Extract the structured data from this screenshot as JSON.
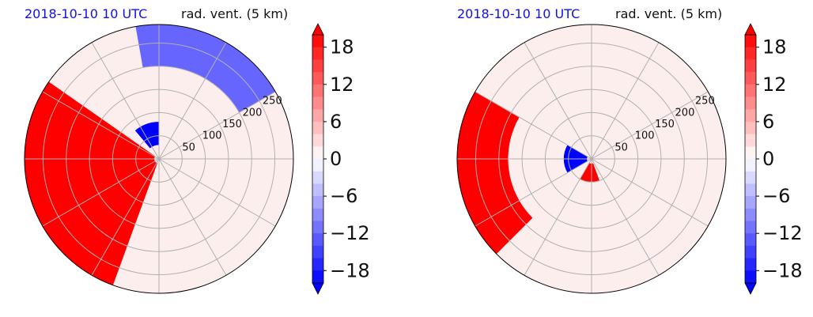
{
  "chart_data": [
    {
      "type": "heatmap",
      "projection": "polar",
      "title_left": "2018-10-10 10 UTC",
      "title_right": "rad. vent. (5 km)",
      "range_rings": [
        50,
        100,
        150,
        200,
        250
      ],
      "range_ring_labels": [
        "50",
        "100",
        "150",
        "200",
        "250"
      ],
      "radial_lines_deg": [
        0,
        30,
        60,
        90,
        120,
        150,
        180,
        210,
        240,
        270,
        300,
        330
      ],
      "max_range": 290,
      "colorbar": {
        "ticks": [
          "18",
          "12",
          "6",
          "0",
          "−6",
          "−12",
          "−18"
        ],
        "tick_values": [
          18,
          12,
          6,
          0,
          -6,
          -12,
          -18
        ],
        "vmin": -20,
        "vmax": 20,
        "negative_color": "#0000ff",
        "positive_color": "#ff0000",
        "zero_color": "#ffffff",
        "extend": "both"
      },
      "features": [
        {
          "sign": "positive",
          "az_start": 200,
          "az_end": 305,
          "r_min": 10,
          "r_max": 290,
          "intensity": 20
        },
        {
          "sign": "negative",
          "az_start": 320,
          "az_end": 360,
          "r_min": 30,
          "r_max": 80,
          "intensity": 20
        },
        {
          "sign": "negative",
          "az_start": 350,
          "az_end": 60,
          "r_min": 200,
          "r_max": 290,
          "intensity": 12
        }
      ]
    },
    {
      "type": "heatmap",
      "projection": "polar",
      "title_left": "2018-10-10 10 UTC",
      "title_right": "rad. vent. (5 km)",
      "range_rings": [
        50,
        100,
        150,
        200,
        250
      ],
      "range_ring_labels": [
        "50",
        "100",
        "150",
        "200",
        "250"
      ],
      "radial_lines_deg": [
        0,
        30,
        60,
        90,
        120,
        150,
        180,
        210,
        240,
        270,
        300,
        330
      ],
      "max_range": 290,
      "colorbar": {
        "ticks": [
          "18",
          "12",
          "6",
          "0",
          "−6",
          "−12",
          "−18"
        ],
        "tick_values": [
          18,
          12,
          6,
          0,
          -6,
          -12,
          -18
        ],
        "vmin": -20,
        "vmax": 20,
        "negative_color": "#0000ff",
        "positive_color": "#ff0000",
        "zero_color": "#ffffff",
        "extend": "both"
      },
      "features": [
        {
          "sign": "positive",
          "az_start": 225,
          "az_end": 300,
          "r_min": 180,
          "r_max": 290,
          "intensity": 20
        },
        {
          "sign": "negative",
          "az_start": 240,
          "az_end": 300,
          "r_min": 10,
          "r_max": 60,
          "intensity": 20
        },
        {
          "sign": "positive",
          "az_start": 160,
          "az_end": 210,
          "r_min": 10,
          "r_max": 50,
          "intensity": 20
        }
      ]
    }
  ]
}
